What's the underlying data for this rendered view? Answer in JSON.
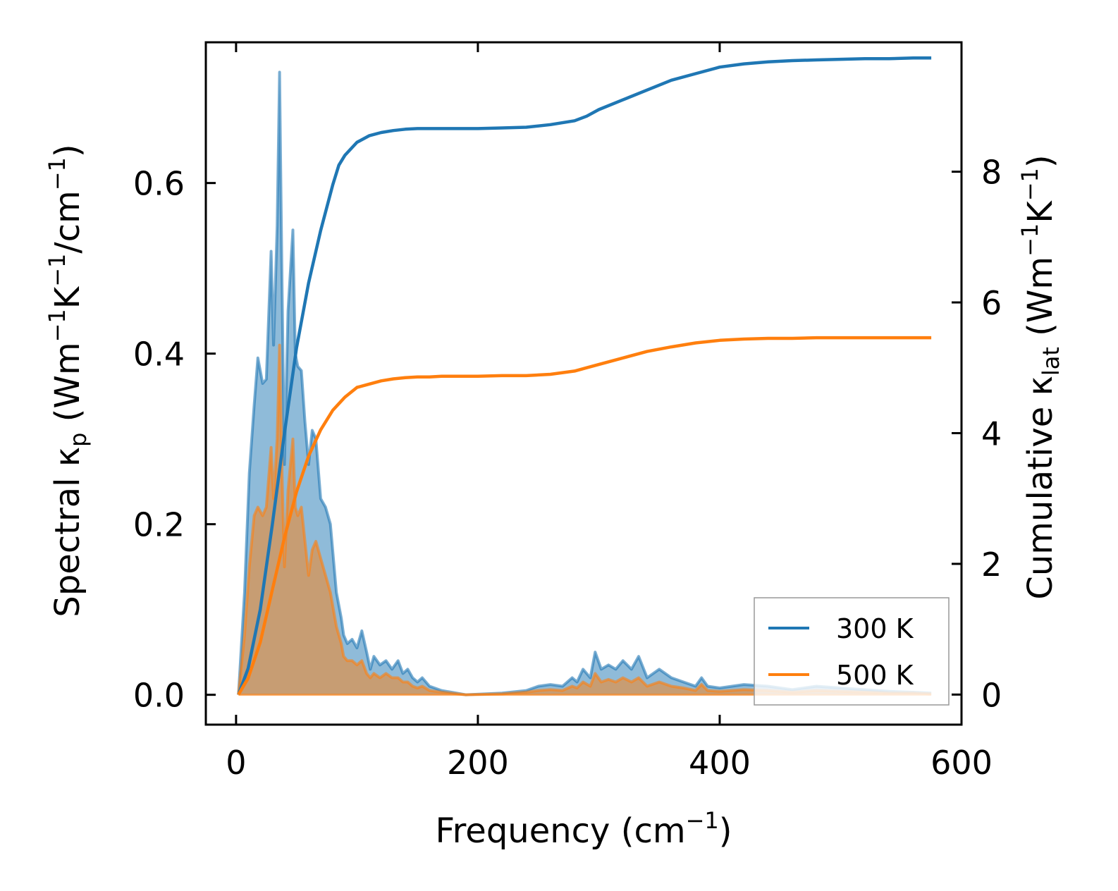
{
  "chart_data": {
    "type": "area",
    "xlabel": {
      "main": "Frequency (cm",
      "sup": "−1",
      "tail": ")"
    },
    "ylabel_left": {
      "main": "Spectral κ",
      "sub": "p",
      "mid": " (Wm",
      "sup1": "−1",
      "k": "K",
      "sup2": "−1",
      "slash": "/cm",
      "sup3": "−1",
      "tail": ")"
    },
    "ylabel_right": {
      "main": "Cumulative κ",
      "sub": "lat",
      "mid": " (Wm",
      "sup1": "−1",
      "k": "K",
      "sup2": "−1",
      "tail": ")"
    },
    "xlim": [
      -25,
      600
    ],
    "ylim_left": [
      -0.035,
      0.765
    ],
    "ylim_right": [
      -0.46,
      9.98
    ],
    "x_ticks": [
      0,
      200,
      400,
      600
    ],
    "x_tick_labels": [
      "0",
      "200",
      "400",
      "600"
    ],
    "y_left_ticks": [
      0.0,
      0.2,
      0.4,
      0.6
    ],
    "y_left_tick_labels": [
      "0.0",
      "0.2",
      "0.4",
      "0.6"
    ],
    "y_right_ticks": [
      0,
      2,
      4,
      6,
      8
    ],
    "y_right_tick_labels": [
      "0",
      "2",
      "4",
      "6",
      "8"
    ],
    "legend": {
      "position": "lower-right",
      "entries": [
        "300 K",
        "500 K"
      ]
    },
    "colors": {
      "300K": "#1f77b4",
      "500K": "#ff7f0e"
    },
    "spectral": [
      {
        "name": "300 K",
        "x": [
          2,
          7,
          11,
          15,
          18,
          22,
          25,
          29,
          31,
          34,
          36,
          38,
          40,
          43,
          47,
          49,
          51,
          54,
          57,
          60,
          63,
          66,
          70,
          74,
          78,
          83,
          87,
          89,
          92,
          96,
          100,
          104,
          108,
          111,
          114,
          119,
          124,
          129,
          134,
          138,
          142,
          146,
          150,
          154,
          160,
          170,
          190,
          220,
          240,
          250,
          260,
          270,
          278,
          282,
          287,
          293,
          297,
          302,
          308,
          314,
          320,
          327,
          333,
          340,
          350,
          360,
          370,
          380,
          385,
          390,
          400,
          420,
          440,
          460,
          480,
          500,
          520,
          540,
          560,
          575
        ],
        "values": [
          0.0,
          0.12,
          0.26,
          0.34,
          0.395,
          0.365,
          0.37,
          0.52,
          0.41,
          0.55,
          0.73,
          0.48,
          0.27,
          0.45,
          0.545,
          0.4,
          0.385,
          0.38,
          0.32,
          0.27,
          0.31,
          0.3,
          0.23,
          0.22,
          0.2,
          0.12,
          0.09,
          0.07,
          0.06,
          0.065,
          0.055,
          0.075,
          0.05,
          0.03,
          0.045,
          0.035,
          0.04,
          0.03,
          0.04,
          0.025,
          0.03,
          0.02,
          0.015,
          0.02,
          0.01,
          0.005,
          0.0,
          0.002,
          0.005,
          0.01,
          0.012,
          0.01,
          0.02,
          0.015,
          0.03,
          0.02,
          0.05,
          0.03,
          0.035,
          0.03,
          0.04,
          0.03,
          0.045,
          0.02,
          0.03,
          0.02,
          0.015,
          0.01,
          0.02,
          0.01,
          0.008,
          0.012,
          0.01,
          0.006,
          0.01,
          0.008,
          0.006,
          0.004,
          0.003,
          0.002
        ]
      },
      {
        "name": "500 K",
        "x": [
          2,
          7,
          11,
          15,
          18,
          22,
          25,
          29,
          31,
          34,
          36,
          38,
          40,
          43,
          47,
          49,
          51,
          54,
          57,
          60,
          63,
          66,
          70,
          74,
          78,
          83,
          87,
          89,
          92,
          96,
          100,
          104,
          108,
          111,
          114,
          119,
          124,
          129,
          134,
          138,
          142,
          146,
          150,
          154,
          160,
          170,
          190,
          220,
          240,
          250,
          260,
          270,
          278,
          282,
          287,
          293,
          297,
          302,
          308,
          314,
          320,
          327,
          333,
          340,
          350,
          360,
          370,
          380,
          385,
          390,
          400,
          420,
          440,
          460,
          480,
          500,
          520,
          540,
          560,
          575
        ],
        "values": [
          0.0,
          0.07,
          0.15,
          0.21,
          0.22,
          0.21,
          0.22,
          0.29,
          0.23,
          0.3,
          0.41,
          0.26,
          0.15,
          0.24,
          0.3,
          0.22,
          0.21,
          0.22,
          0.18,
          0.14,
          0.17,
          0.18,
          0.16,
          0.14,
          0.12,
          0.08,
          0.06,
          0.045,
          0.04,
          0.04,
          0.035,
          0.04,
          0.025,
          0.02,
          0.025,
          0.02,
          0.025,
          0.02,
          0.02,
          0.015,
          0.015,
          0.01,
          0.008,
          0.01,
          0.005,
          0.003,
          0.0,
          0.001,
          0.003,
          0.005,
          0.006,
          0.005,
          0.01,
          0.008,
          0.015,
          0.01,
          0.025,
          0.015,
          0.018,
          0.015,
          0.02,
          0.015,
          0.02,
          0.01,
          0.015,
          0.01,
          0.008,
          0.005,
          0.012,
          0.005,
          0.004,
          0.006,
          0.005,
          0.003,
          0.005,
          0.004,
          0.003,
          0.002,
          0.002,
          0.001
        ]
      }
    ],
    "cumulative": [
      {
        "name": "300 K",
        "x": [
          2,
          10,
          20,
          30,
          40,
          50,
          60,
          70,
          80,
          85,
          90,
          100,
          110,
          120,
          130,
          140,
          150,
          160,
          170,
          180,
          200,
          220,
          240,
          260,
          280,
          290,
          300,
          320,
          340,
          360,
          380,
          400,
          420,
          440,
          460,
          480,
          500,
          520,
          540,
          560,
          575
        ],
        "values": [
          0.0,
          0.4,
          1.3,
          2.6,
          4.0,
          5.3,
          6.3,
          7.1,
          7.8,
          8.1,
          8.25,
          8.45,
          8.55,
          8.6,
          8.63,
          8.65,
          8.66,
          8.66,
          8.66,
          8.66,
          8.66,
          8.67,
          8.68,
          8.72,
          8.78,
          8.85,
          8.95,
          9.1,
          9.25,
          9.4,
          9.5,
          9.6,
          9.65,
          9.68,
          9.7,
          9.71,
          9.72,
          9.73,
          9.73,
          9.74,
          9.74
        ]
      },
      {
        "name": "500 K",
        "x": [
          2,
          10,
          20,
          30,
          40,
          50,
          60,
          70,
          80,
          85,
          90,
          100,
          110,
          120,
          130,
          140,
          150,
          160,
          170,
          180,
          200,
          220,
          240,
          260,
          280,
          290,
          300,
          320,
          340,
          360,
          380,
          400,
          420,
          440,
          460,
          480,
          500,
          520,
          540,
          560,
          575
        ],
        "values": [
          0.0,
          0.25,
          0.8,
          1.6,
          2.4,
          3.1,
          3.65,
          4.05,
          4.35,
          4.45,
          4.55,
          4.7,
          4.75,
          4.8,
          4.83,
          4.85,
          4.86,
          4.86,
          4.87,
          4.87,
          4.87,
          4.88,
          4.88,
          4.9,
          4.95,
          5.0,
          5.05,
          5.15,
          5.25,
          5.32,
          5.38,
          5.42,
          5.44,
          5.45,
          5.45,
          5.46,
          5.46,
          5.46,
          5.46,
          5.46,
          5.46
        ]
      }
    ]
  }
}
